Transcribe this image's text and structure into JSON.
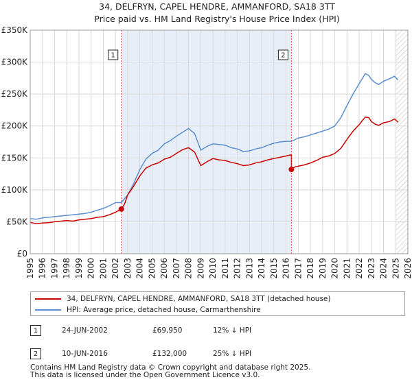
{
  "chart_data": {
    "type": "line",
    "title": "34, DELFRYN, CAPEL HENDRE, AMMANFORD, SA18 3TT",
    "subtitle": "Price paid vs. HM Land Registry's House Price Index (HPI)",
    "xlabel": "",
    "ylabel": "",
    "xlim": [
      1995,
      2026
    ],
    "ylim": [
      0,
      350000
    ],
    "x_ticks": [
      "1995",
      "1996",
      "1997",
      "1998",
      "1999",
      "2000",
      "2001",
      "2002",
      "2003",
      "2004",
      "2005",
      "2006",
      "2007",
      "2008",
      "2009",
      "2010",
      "2011",
      "2012",
      "2013",
      "2014",
      "2015",
      "2016",
      "2017",
      "2018",
      "2019",
      "2020",
      "2021",
      "2022",
      "2023",
      "2024",
      "2025",
      "2026"
    ],
    "y_ticks": [
      {
        "value": 0,
        "label": "£0"
      },
      {
        "value": 50000,
        "label": "£50K"
      },
      {
        "value": 100000,
        "label": "£100K"
      },
      {
        "value": 150000,
        "label": "£150K"
      },
      {
        "value": 200000,
        "label": "£200K"
      },
      {
        "value": 250000,
        "label": "£250K"
      },
      {
        "value": 300000,
        "label": "£300K"
      },
      {
        "value": 350000,
        "label": "£350K"
      }
    ],
    "grid": true,
    "shaded_period": [
      2002.48,
      2016.44
    ],
    "projection_start": 2025.0,
    "series": [
      {
        "name": "34, DELFRYN, CAPEL HENDRE, AMMANFORD, SA18 3TT (detached house)",
        "color": "#cc0000",
        "x": [
          1995.0,
          1995.5,
          1996.0,
          1996.5,
          1997.0,
          1997.5,
          1998.0,
          1998.5,
          1999.0,
          1999.5,
          2000.0,
          2000.5,
          2001.0,
          2001.5,
          2002.0,
          2002.48,
          2002.48,
          2002.75,
          2003.0,
          2003.5,
          2004.0,
          2004.5,
          2005.0,
          2005.5,
          2006.0,
          2006.5,
          2007.0,
          2007.5,
          2008.0,
          2008.5,
          2009.0,
          2009.5,
          2010.0,
          2010.5,
          2011.0,
          2011.5,
          2012.0,
          2012.5,
          2013.0,
          2013.5,
          2014.0,
          2014.5,
          2015.0,
          2015.5,
          2016.0,
          2016.44,
          2016.44,
          2016.75,
          2017.0,
          2017.5,
          2018.0,
          2018.5,
          2019.0,
          2019.5,
          2020.0,
          2020.5,
          2021.0,
          2021.5,
          2022.0,
          2022.5,
          2022.8,
          2023.0,
          2023.3,
          2023.6,
          2024.0,
          2024.5,
          2024.9,
          2025.2
        ],
        "values": [
          49000,
          47000,
          48000,
          48500,
          50000,
          51000,
          52000,
          51000,
          53000,
          54000,
          55000,
          57000,
          58000,
          61000,
          65000,
          69950,
          69950,
          78000,
          92000,
          106000,
          122000,
          134000,
          139000,
          142000,
          148000,
          151000,
          157000,
          163000,
          166000,
          159000,
          138000,
          144000,
          149000,
          147000,
          146000,
          143000,
          141000,
          138000,
          139000,
          142000,
          144000,
          147000,
          149000,
          151000,
          153000,
          155000,
          132000,
          136000,
          137000,
          139000,
          142000,
          146000,
          151000,
          153000,
          157000,
          165000,
          179000,
          192000,
          202000,
          214000,
          213000,
          207000,
          203000,
          201000,
          205000,
          207000,
          211000,
          206000
        ]
      },
      {
        "name": "HPI: Average price, detached house, Carmarthenshire",
        "color": "#5a8fd0",
        "x": [
          1995.0,
          1995.5,
          1996.0,
          1996.5,
          1997.0,
          1997.5,
          1998.0,
          1998.5,
          1999.0,
          1999.5,
          2000.0,
          2000.5,
          2001.0,
          2001.5,
          2002.0,
          2002.48,
          2003.0,
          2003.5,
          2004.0,
          2004.5,
          2005.0,
          2005.5,
          2006.0,
          2006.5,
          2007.0,
          2007.5,
          2008.0,
          2008.5,
          2009.0,
          2009.5,
          2010.0,
          2010.5,
          2011.0,
          2011.5,
          2012.0,
          2012.5,
          2013.0,
          2013.5,
          2014.0,
          2014.5,
          2015.0,
          2015.5,
          2016.0,
          2016.44,
          2017.0,
          2017.5,
          2018.0,
          2018.5,
          2019.0,
          2019.5,
          2020.0,
          2020.5,
          2021.0,
          2021.5,
          2022.0,
          2022.5,
          2022.8,
          2023.0,
          2023.3,
          2023.6,
          2024.0,
          2024.5,
          2024.9,
          2025.2
        ],
        "values": [
          55000,
          54000,
          56000,
          57000,
          58000,
          59000,
          60000,
          61000,
          62000,
          63000,
          65000,
          68000,
          71000,
          75000,
          80000,
          80000,
          92000,
          110000,
          132000,
          148000,
          157000,
          162000,
          172000,
          177000,
          184000,
          190000,
          196000,
          188000,
          162000,
          168000,
          172000,
          171000,
          170000,
          166000,
          164000,
          160000,
          161000,
          164000,
          166000,
          170000,
          173000,
          175000,
          176000,
          176000,
          181000,
          183000,
          186000,
          189000,
          192000,
          195000,
          200000,
          213000,
          232000,
          250000,
          266000,
          282000,
          279000,
          273000,
          268000,
          265000,
          270000,
          274000,
          278000,
          272000
        ]
      }
    ],
    "sales": [
      {
        "id": "1",
        "x": 2002.48,
        "value": 69950,
        "date": "24-JUN-2002",
        "price": "£69,950",
        "hpi_note": "12% ↓ HPI"
      },
      {
        "id": "2",
        "x": 2016.44,
        "value": 132000,
        "date": "10-JUN-2016",
        "price": "£132,000",
        "hpi_note": "25% ↓ HPI"
      }
    ]
  },
  "legend": {
    "red_label": "34, DELFRYN, CAPEL HENDRE, AMMANFORD, SA18 3TT (detached house)",
    "blue_label": "HPI: Average price, detached house, Carmarthenshire",
    "red_color": "#cc0000",
    "blue_color": "#5a8fd0"
  },
  "footer": {
    "line1": "Contains HM Land Registry data © Crown copyright and database right 2025.",
    "line2": "This data is licensed under the Open Government Licence v3.0."
  }
}
